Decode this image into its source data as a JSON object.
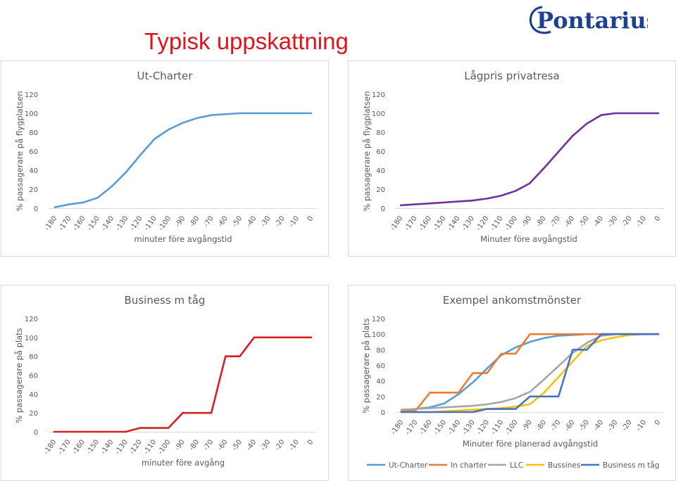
{
  "slide": {
    "title": "Typisk uppskattning",
    "logo_text": "Pontarius"
  },
  "colors": {
    "title": "#e0141e",
    "logo": "#1f3f8f",
    "ut_charter": "#5b9bd5",
    "lagpris": "#7030a0",
    "business": "#d42020",
    "in_charter": "#ed7d31",
    "llc": "#a5a5a5",
    "bussines": "#ffc000",
    "business_m_tag": "#4472c4"
  },
  "chart_data": [
    {
      "type": "line",
      "title": "Ut-Charter",
      "xlabel": "minuter före avgångstid",
      "ylabel": "% passagerare på flygplatsen",
      "x": [
        "-180",
        "-170",
        "-160",
        "-150",
        "-140",
        "-130",
        "-120",
        "-110",
        "-100",
        "-90",
        "-80",
        "-70",
        "-60",
        "-50",
        "-40",
        "-30",
        "-20",
        "-10",
        "0"
      ],
      "ylim": [
        0,
        120
      ],
      "yticks": [
        0,
        20,
        40,
        60,
        80,
        100,
        120
      ],
      "grid": false,
      "series": [
        {
          "values": [
            1,
            4,
            6,
            11,
            23,
            38,
            56,
            73,
            83,
            90,
            95,
            98,
            99,
            100,
            100,
            100,
            100,
            100,
            100
          ],
          "color": "#5b9bd5"
        }
      ]
    },
    {
      "type": "line",
      "title": "Lågpris privatresa",
      "xlabel": "Minuter före avgångstid",
      "ylabel": "% passagerare på flygplatsen",
      "x": [
        "-180",
        "-170",
        "-160",
        "-150",
        "-140",
        "-130",
        "-120",
        "-110",
        "-100",
        "-90",
        "-80",
        "-70",
        "-60",
        "-50",
        "-40",
        "-30",
        "-20",
        "-10",
        "0"
      ],
      "ylim": [
        0,
        120
      ],
      "yticks": [
        0,
        20,
        40,
        60,
        80,
        100,
        120
      ],
      "grid": false,
      "series": [
        {
          "values": [
            3,
            4,
            5,
            6,
            7,
            8,
            10,
            13,
            18,
            26,
            42,
            59,
            76,
            89,
            98,
            100,
            100,
            100,
            100
          ],
          "color": "#7030a0"
        }
      ]
    },
    {
      "type": "line",
      "title": "Business m tåg",
      "xlabel": "minuter före avgång",
      "ylabel": "% passagerare på plats",
      "x": [
        "-180",
        "-170",
        "-160",
        "-150",
        "-140",
        "-130",
        "-120",
        "-110",
        "-100",
        "-90",
        "-80",
        "-70",
        "-60",
        "-50",
        "-40",
        "-30",
        "-20",
        "-10",
        "0"
      ],
      "ylim": [
        0,
        120
      ],
      "yticks": [
        0,
        20,
        40,
        60,
        80,
        100,
        120
      ],
      "grid": false,
      "series": [
        {
          "values": [
            0,
            0,
            0,
            0,
            0,
            0,
            4,
            4,
            4,
            20,
            20,
            20,
            80,
            80,
            100,
            100,
            100,
            100,
            100
          ],
          "color": "#d42020"
        }
      ]
    },
    {
      "type": "line",
      "title": "Exempel ankomstmönster",
      "xlabel": "Minuter före planerad avgångstid",
      "ylabel": "% passagerare på plats",
      "x": [
        "-180",
        "-170",
        "-160",
        "-150",
        "-140",
        "-130",
        "-120",
        "-110",
        "-100",
        "-90",
        "-80",
        "-70",
        "-60",
        "-50",
        "-40",
        "-30",
        "-20",
        "-10",
        "0"
      ],
      "ylim": [
        0,
        120
      ],
      "yticks": [
        0,
        20,
        40,
        60,
        80,
        100,
        120
      ],
      "grid": false,
      "legend": "bottom",
      "series": [
        {
          "name": "Ut-Charter",
          "values": [
            1,
            4,
            6,
            11,
            23,
            38,
            56,
            73,
            83,
            90,
            95,
            98,
            99,
            100,
            100,
            100,
            100,
            100,
            100
          ],
          "color": "#5b9bd5"
        },
        {
          "name": "In charter",
          "values": [
            2,
            2,
            25,
            25,
            25,
            50,
            50,
            75,
            75,
            100,
            100,
            100,
            100,
            100,
            100,
            100,
            100,
            100,
            100
          ],
          "color": "#ed7d31"
        },
        {
          "name": "LLC",
          "values": [
            3,
            4,
            5,
            6,
            7,
            8,
            10,
            13,
            18,
            26,
            42,
            59,
            76,
            89,
            98,
            100,
            100,
            100,
            100
          ],
          "color": "#a5a5a5"
        },
        {
          "name": "Bussines",
          "values": [
            0,
            0,
            0,
            1,
            2,
            3,
            4,
            5,
            7,
            10,
            25,
            45,
            65,
            85,
            92,
            96,
            99,
            100,
            100
          ],
          "color": "#ffc000"
        },
        {
          "name": "Business m tåg",
          "values": [
            0,
            0,
            0,
            0,
            0,
            0,
            4,
            4,
            4,
            20,
            20,
            20,
            80,
            80,
            100,
            100,
            100,
            100,
            100
          ],
          "color": "#4472c4"
        }
      ]
    }
  ]
}
